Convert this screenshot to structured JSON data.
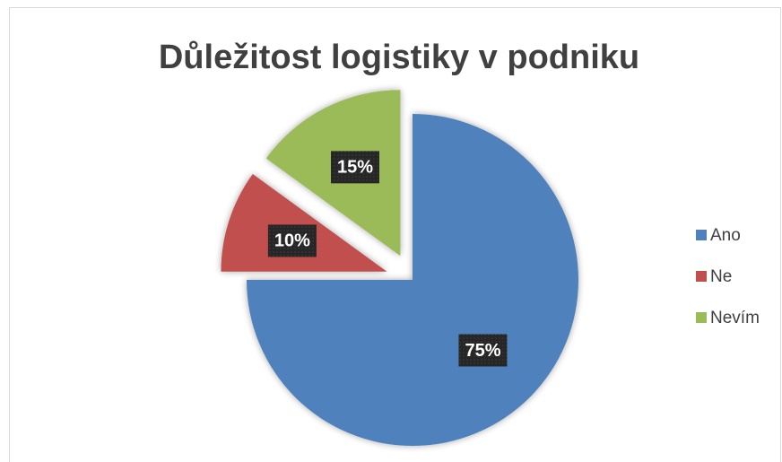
{
  "chart_data": {
    "type": "pie",
    "title": "Důležitost logistiky v podniku",
    "categories": [
      "Ano",
      "Ne",
      "Nevím"
    ],
    "values": [
      75,
      10,
      15
    ],
    "value_labels": [
      "75%",
      "10%",
      "15%"
    ],
    "colors": [
      "#4f81bd",
      "#c0504d",
      "#9bbb59"
    ],
    "exploded": [
      false,
      true,
      true
    ],
    "legend": "right"
  }
}
